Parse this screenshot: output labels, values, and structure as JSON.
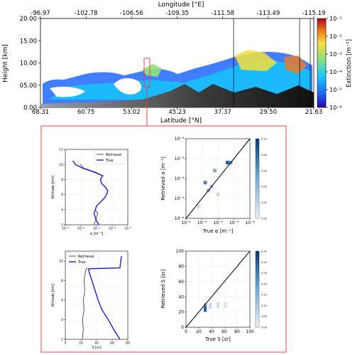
{
  "figure": {
    "colors": {
      "frame": "#e8413a",
      "axis": "#000000",
      "retrieval": "#555555",
      "truth": "#1f1fd6",
      "heat": "#1f5fa8"
    }
  },
  "chart_data": [
    {
      "id": "curtain",
      "type": "heatmap",
      "top_axis_label": "Longitude [°E]",
      "top_ticks": [
        "-96.97",
        "-102.78",
        "-106.56",
        "-109.35",
        "-111.58",
        "-113.49",
        "-115.19"
      ],
      "xlabel": "Latitude [°N]",
      "x_ticks": [
        "68.31",
        "60.75",
        "53.02",
        "45.23",
        "37.37",
        "29.50",
        "21.63"
      ],
      "ylabel": "Height [km]",
      "ylim": [
        0,
        20
      ],
      "y_ticks": [
        "0.00",
        "05.00",
        "10.00",
        "15.00",
        "20.00"
      ],
      "colorbar_label": "Extinction [m⁻¹]",
      "colorbar_ticks": [
        "10⁻¹",
        "10⁻²",
        "10⁻³",
        "10⁻⁴",
        "10⁻⁵",
        "10⁻⁶"
      ],
      "log_scale": true
    },
    {
      "id": "profile-alpha",
      "type": "line",
      "xlabel": "α [m⁻¹]",
      "ylabel": "Altitude [km]",
      "x_log": true,
      "x_ticks": [
        "10⁻⁸",
        "10⁻⁶",
        "10⁻⁵",
        "10⁻⁴",
        "10⁻³"
      ],
      "y_ticks": [
        "2",
        "4",
        "6",
        "8",
        "10",
        "12"
      ],
      "ylim": [
        2,
        12
      ],
      "legend": [
        "Retrieval",
        "True"
      ],
      "series": [
        {
          "name": "Retrieval",
          "y": [
            2.0,
            2.5,
            3.0,
            3.5,
            4.0,
            4.5,
            5.0,
            5.5,
            6.0,
            6.5,
            7.0,
            7.5,
            8.0,
            8.5,
            9.0,
            9.5,
            10.0
          ],
          "log_x": [
            -5.7,
            -5.6,
            -5.5,
            -5.4,
            -5.6,
            -5.5,
            -5.2,
            -4.9,
            -4.7,
            -4.6,
            -4.8,
            -5.1,
            -5.2,
            -5.0,
            -5.6,
            -6.5,
            -6.8
          ]
        },
        {
          "name": "True",
          "y": [
            2.0,
            2.5,
            3.0,
            3.5,
            4.0,
            4.5,
            5.0,
            5.5,
            6.0,
            6.5,
            7.0,
            7.5,
            8.0,
            8.5,
            9.0,
            9.5,
            10.0,
            10.5
          ],
          "log_x": [
            -5.3,
            -5.5,
            -5.6,
            -5.7,
            -5.6,
            -5.5,
            -5.2,
            -4.9,
            -4.7,
            -4.6,
            -4.8,
            -5.1,
            -5.2,
            -5.0,
            -5.7,
            -6.6,
            -7.2,
            -7.4
          ]
        }
      ]
    },
    {
      "id": "scatter-alpha",
      "type": "heatmap",
      "xlabel": "True α [m⁻¹]",
      "ylabel": "Retrieved α [m⁻¹]",
      "x_ticks": [
        "10⁻⁶",
        "10⁻⁵",
        "10⁻⁴",
        "10⁻³",
        "10⁻²"
      ],
      "y_ticks": [
        "10⁻⁶",
        "10⁻⁵",
        "10⁻⁴",
        "10⁻³",
        "10⁻²"
      ],
      "colorbar_ticks": [
        "0.10",
        "0.08",
        "0.06",
        "0.04",
        "0.02",
        "0.00"
      ],
      "cells": [
        {
          "log_x": -4.8,
          "log_y": -4.2,
          "v": 0.08
        },
        {
          "log_x": -4.6,
          "log_y": -4.6,
          "v": 0.04
        },
        {
          "log_x": -4.4,
          "log_y": -4.4,
          "v": 0.03
        },
        {
          "log_x": -4.2,
          "log_y": -3.6,
          "v": 0.05
        },
        {
          "log_x": -3.4,
          "log_y": -3.2,
          "v": 0.11
        },
        {
          "log_x": -3.2,
          "log_y": -3.2,
          "v": 0.06
        },
        {
          "log_x": -5.2,
          "log_y": -5.4,
          "v": 0.01
        },
        {
          "log_x": -4.0,
          "log_y": -4.8,
          "v": 0.01
        }
      ]
    },
    {
      "id": "profile-S",
      "type": "line",
      "xlabel": "S [sr]",
      "ylabel": "Altitude [km]",
      "x_ticks": [
        "0",
        "20",
        "40",
        "60",
        "80"
      ],
      "y_ticks": [
        "2",
        "4",
        "6",
        "8",
        "10"
      ],
      "ylim": [
        2,
        11
      ],
      "legend": [
        "Retrieval",
        "True"
      ],
      "series": [
        {
          "name": "Retrieval",
          "y": [
            2.0,
            3.0,
            4.0,
            5.0,
            6.0,
            7.0,
            8.0,
            9.0,
            9.3
          ],
          "x": [
            22,
            23,
            22,
            24,
            23,
            25,
            24,
            26,
            28
          ]
        },
        {
          "name": "True",
          "y": [
            2.0,
            3.0,
            4.0,
            5.0,
            6.0,
            7.0,
            8.0,
            9.0,
            9.2,
            9.3,
            10.0,
            10.5
          ],
          "x": [
            70,
            62,
            55,
            47,
            42,
            38,
            34,
            30,
            30,
            70,
            71,
            72
          ]
        }
      ]
    },
    {
      "id": "scatter-S",
      "type": "heatmap",
      "xlabel": "True S [sr]",
      "ylabel": "Retrieved S [sr]",
      "x_ticks": [
        "0",
        "20",
        "40",
        "60",
        "80",
        "100"
      ],
      "y_ticks": [
        "0",
        "20",
        "40",
        "60",
        "80",
        "100"
      ],
      "colorbar_ticks": [
        "0.35",
        "0.30",
        "0.25",
        "0.20",
        "0.15",
        "0.10",
        "0.05",
        "0.00"
      ],
      "cells": [
        {
          "x": 30,
          "y": 24,
          "v": 0.35
        },
        {
          "x": 30,
          "y": 28,
          "v": 0.18
        },
        {
          "x": 38,
          "y": 28,
          "v": 0.05
        },
        {
          "x": 50,
          "y": 29,
          "v": 0.04
        },
        {
          "x": 62,
          "y": 29,
          "v": 0.02
        }
      ]
    }
  ]
}
